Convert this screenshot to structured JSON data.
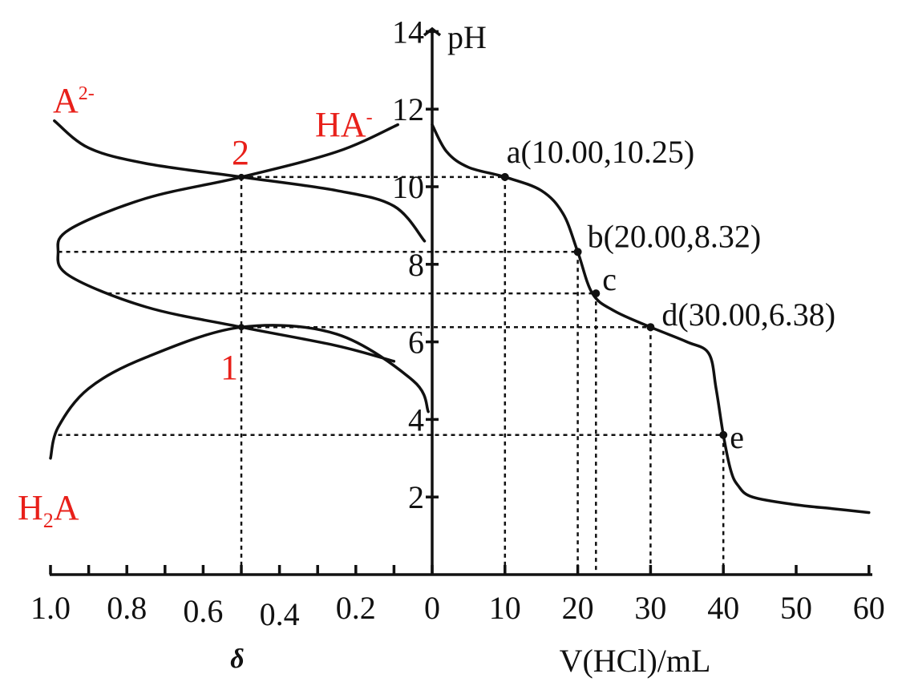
{
  "chart_data": [
    {
      "type": "line",
      "panel": "titration",
      "xlabel": "V(HCl)/mL",
      "ylabel": "pH",
      "xlim": [
        0,
        60
      ],
      "ylim": [
        0,
        14
      ],
      "xticks": [
        "0",
        "10",
        "20",
        "30",
        "40",
        "50",
        "60"
      ],
      "yticks": [
        "2",
        "4",
        "6",
        "8",
        "10",
        "12",
        "14"
      ],
      "grid": false,
      "series": [
        {
          "x": [
            0,
            2,
            5,
            10,
            15,
            18,
            20,
            22,
            25,
            30,
            35,
            38,
            39,
            40,
            41,
            42,
            44,
            50,
            55,
            60
          ],
          "y": [
            11.6,
            10.9,
            10.5,
            10.25,
            9.9,
            9.3,
            8.32,
            7.25,
            6.8,
            6.38,
            6.0,
            5.7,
            4.8,
            3.6,
            2.7,
            2.3,
            2.0,
            1.8,
            1.7,
            1.6
          ]
        }
      ],
      "points": [
        {
          "name": "a",
          "label": "a(10.00,10.25)",
          "x": 10.0,
          "y": 10.25
        },
        {
          "name": "b",
          "label": "b(20.00,8.32)",
          "x": 20.0,
          "y": 8.32
        },
        {
          "name": "c",
          "label": "c",
          "x": 22.5,
          "y": 7.25
        },
        {
          "name": "d",
          "label": "d(30.00,6.38)",
          "x": 30.0,
          "y": 6.38
        },
        {
          "name": "e",
          "label": "e",
          "x": 40.0,
          "y": 3.6
        }
      ]
    },
    {
      "type": "line",
      "panel": "distribution",
      "xlabel": "δ",
      "xlim": [
        1.0,
        0
      ],
      "ylim": [
        0,
        14
      ],
      "xticks": [
        "1.0",
        "0.8",
        "0.6",
        "0.4",
        "0.2",
        "0"
      ],
      "grid": false,
      "series": [
        {
          "name": "A²⁻",
          "x": [
            0.99,
            0.9,
            0.75,
            0.5,
            0.25,
            0.1,
            0.02
          ],
          "y": [
            11.7,
            11.0,
            10.6,
            10.25,
            9.9,
            9.5,
            8.6
          ]
        },
        {
          "name": "HA⁻",
          "x": [
            0.09,
            0.25,
            0.5,
            0.75,
            0.95,
            0.98,
            0.95,
            0.75,
            0.5,
            0.25,
            0.1
          ],
          "y": [
            11.6,
            10.9,
            10.25,
            9.7,
            8.9,
            8.32,
            7.7,
            6.9,
            6.38,
            5.9,
            5.5
          ]
        },
        {
          "name": "H₂A",
          "x": [
            1.0,
            0.98,
            0.9,
            0.75,
            0.5,
            0.25,
            0.05,
            0.01
          ],
          "y": [
            3.0,
            3.8,
            4.8,
            5.6,
            6.38,
            6.2,
            5.0,
            4.2
          ]
        }
      ],
      "annotations": [
        "1",
        "2"
      ],
      "labels": {
        "a2": {
          "base": "A",
          "sup": "2-"
        },
        "ha": {
          "base": "HA",
          "sup": "-"
        },
        "h2a": {
          "pre": "H",
          "sub": "2",
          "post": "A"
        }
      }
    }
  ]
}
